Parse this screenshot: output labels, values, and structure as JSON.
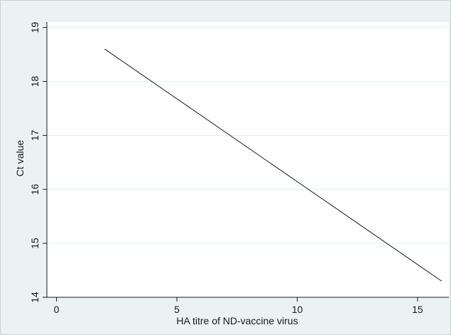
{
  "chart_data": {
    "type": "line",
    "title": "",
    "xlabel": "HA titre of ND-vaccine virus",
    "ylabel": "Ct value",
    "xlim": [
      -0.4,
      16.3
    ],
    "ylim": [
      14,
      19.1
    ],
    "x_ticks": [
      0,
      5,
      10,
      15
    ],
    "y_ticks": [
      14,
      15,
      16,
      17,
      18,
      19
    ],
    "grid": "horizontal",
    "series": [
      {
        "x": [
          2,
          16
        ],
        "y": [
          18.6,
          14.3
        ]
      }
    ],
    "colors": {
      "background": "#eaf2f3",
      "plot_area": "#ffffff",
      "line": "#1a1a1a",
      "grid": "#eaf2f3"
    }
  }
}
